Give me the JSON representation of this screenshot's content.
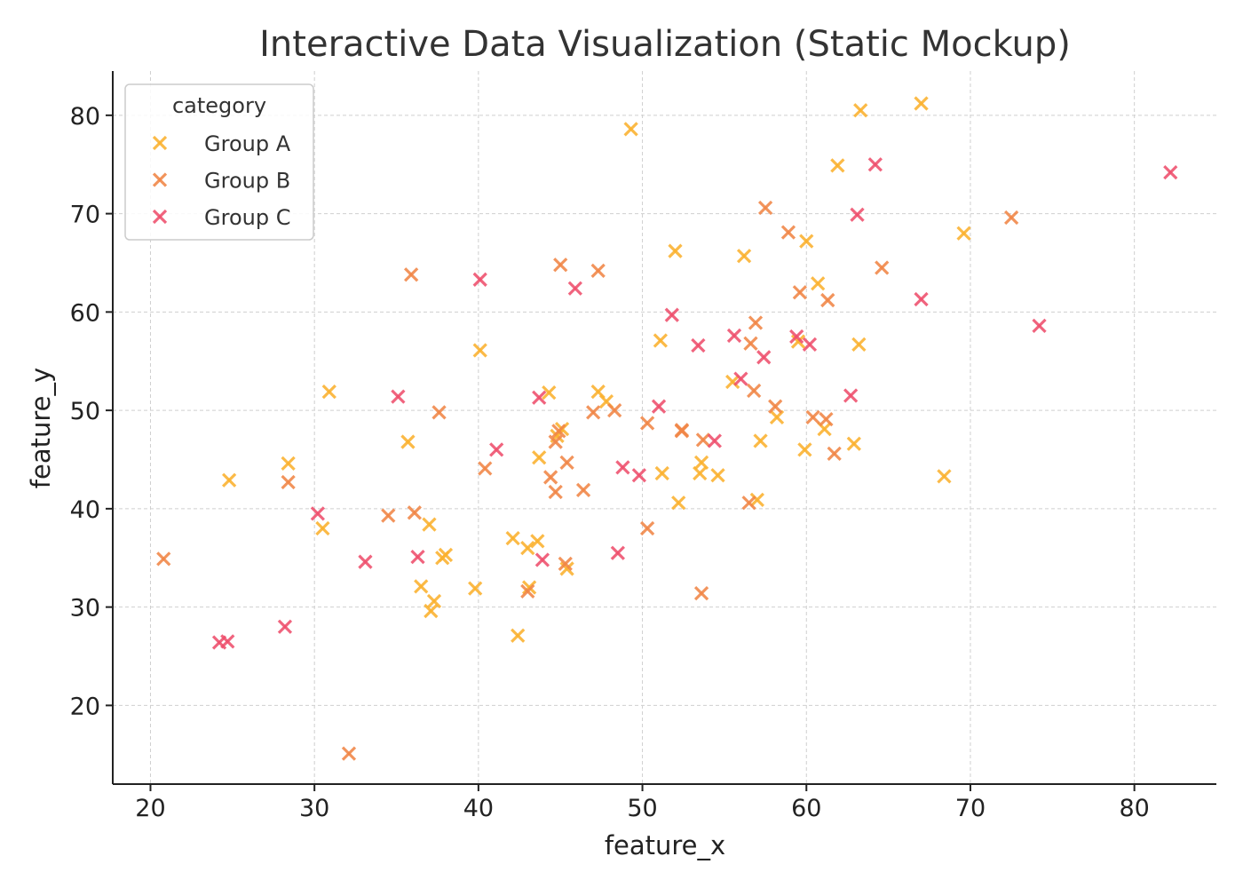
{
  "chart_data": {
    "type": "scatter",
    "title": "Interactive Data Visualization (Static Mockup)",
    "xlabel": "feature_x",
    "ylabel": "feature_y",
    "xlim": [
      17.7,
      85
    ],
    "ylim": [
      12.0,
      84.5
    ],
    "xticks": [
      20,
      30,
      40,
      50,
      60,
      70,
      80
    ],
    "yticks": [
      20,
      30,
      40,
      50,
      60,
      70,
      80
    ],
    "grid": true,
    "marker": "x",
    "legend": {
      "title": "category",
      "placement": "top-left"
    },
    "series": [
      {
        "name": "Group A",
        "color": "#fbb12e",
        "points": [
          [
            24.8,
            42.9
          ],
          [
            28.4,
            44.6
          ],
          [
            30.5,
            38.0
          ],
          [
            30.9,
            51.9
          ],
          [
            35.7,
            46.8
          ],
          [
            36.5,
            32.1
          ],
          [
            37.0,
            38.4
          ],
          [
            37.1,
            29.6
          ],
          [
            37.3,
            30.6
          ],
          [
            37.8,
            35.0
          ],
          [
            38.0,
            35.3
          ],
          [
            39.8,
            31.9
          ],
          [
            40.1,
            56.1
          ],
          [
            42.1,
            37.0
          ],
          [
            42.4,
            27.1
          ],
          [
            43.0,
            36.0
          ],
          [
            43.1,
            32.0
          ],
          [
            43.6,
            36.7
          ],
          [
            43.7,
            45.2
          ],
          [
            44.3,
            51.8
          ],
          [
            44.8,
            47.4
          ],
          [
            45.1,
            48.1
          ],
          [
            45.4,
            33.9
          ],
          [
            47.3,
            51.9
          ],
          [
            47.8,
            50.9
          ],
          [
            49.3,
            78.6
          ],
          [
            51.1,
            57.1
          ],
          [
            51.2,
            43.6
          ],
          [
            52.0,
            66.2
          ],
          [
            52.2,
            40.6
          ],
          [
            53.5,
            43.6
          ],
          [
            53.6,
            44.7
          ],
          [
            54.6,
            43.4
          ],
          [
            55.5,
            52.9
          ],
          [
            56.2,
            65.7
          ],
          [
            57.0,
            40.9
          ],
          [
            57.2,
            46.9
          ],
          [
            58.2,
            49.3
          ],
          [
            59.5,
            57.0
          ],
          [
            59.9,
            46.0
          ],
          [
            60.0,
            67.2
          ],
          [
            60.7,
            62.9
          ],
          [
            61.1,
            48.1
          ],
          [
            61.9,
            74.9
          ],
          [
            62.9,
            46.6
          ],
          [
            63.2,
            56.7
          ],
          [
            63.3,
            80.5
          ],
          [
            67.0,
            81.2
          ],
          [
            68.4,
            43.3
          ],
          [
            69.6,
            68.0
          ]
        ]
      },
      {
        "name": "Group B",
        "color": "#f08545",
        "points": [
          [
            20.8,
            34.9
          ],
          [
            28.4,
            42.7
          ],
          [
            32.1,
            15.1
          ],
          [
            34.5,
            39.3
          ],
          [
            35.9,
            63.8
          ],
          [
            36.1,
            39.6
          ],
          [
            37.6,
            49.8
          ],
          [
            40.4,
            44.1
          ],
          [
            43.0,
            31.6
          ],
          [
            44.4,
            43.2
          ],
          [
            44.7,
            41.7
          ],
          [
            44.7,
            46.8
          ],
          [
            44.9,
            47.9
          ],
          [
            45.0,
            64.8
          ],
          [
            45.3,
            34.4
          ],
          [
            45.4,
            44.7
          ],
          [
            46.4,
            41.9
          ],
          [
            47.0,
            49.8
          ],
          [
            47.3,
            64.2
          ],
          [
            48.3,
            50.0
          ],
          [
            50.3,
            48.7
          ],
          [
            50.3,
            38.0
          ],
          [
            52.4,
            48.0
          ],
          [
            52.4,
            47.9
          ],
          [
            53.6,
            31.4
          ],
          [
            53.7,
            47.0
          ],
          [
            56.5,
            40.6
          ],
          [
            56.6,
            56.8
          ],
          [
            56.8,
            52.0
          ],
          [
            56.9,
            58.9
          ],
          [
            57.5,
            70.6
          ],
          [
            58.1,
            50.4
          ],
          [
            58.9,
            68.1
          ],
          [
            59.6,
            62.0
          ],
          [
            60.4,
            49.3
          ],
          [
            61.2,
            49.1
          ],
          [
            61.3,
            61.2
          ],
          [
            61.7,
            45.6
          ],
          [
            64.6,
            64.5
          ],
          [
            72.5,
            69.6
          ]
        ]
      },
      {
        "name": "Group C",
        "color": "#ee4f6c",
        "points": [
          [
            24.2,
            26.4
          ],
          [
            24.7,
            26.5
          ],
          [
            28.2,
            28.0
          ],
          [
            30.2,
            39.5
          ],
          [
            33.1,
            34.6
          ],
          [
            35.1,
            51.4
          ],
          [
            36.3,
            35.1
          ],
          [
            40.1,
            63.3
          ],
          [
            41.1,
            46.0
          ],
          [
            43.7,
            51.3
          ],
          [
            43.9,
            34.8
          ],
          [
            45.9,
            62.4
          ],
          [
            48.5,
            35.5
          ],
          [
            48.8,
            44.2
          ],
          [
            49.8,
            43.4
          ],
          [
            51.0,
            50.4
          ],
          [
            51.8,
            59.7
          ],
          [
            53.4,
            56.6
          ],
          [
            54.4,
            46.9
          ],
          [
            55.6,
            57.6
          ],
          [
            56.0,
            53.2
          ],
          [
            57.4,
            55.4
          ],
          [
            59.4,
            57.5
          ],
          [
            60.2,
            56.7
          ],
          [
            62.7,
            51.5
          ],
          [
            63.1,
            69.9
          ],
          [
            64.2,
            75.0
          ],
          [
            67.0,
            61.3
          ],
          [
            74.2,
            58.6
          ],
          [
            82.2,
            74.2
          ]
        ]
      }
    ]
  }
}
